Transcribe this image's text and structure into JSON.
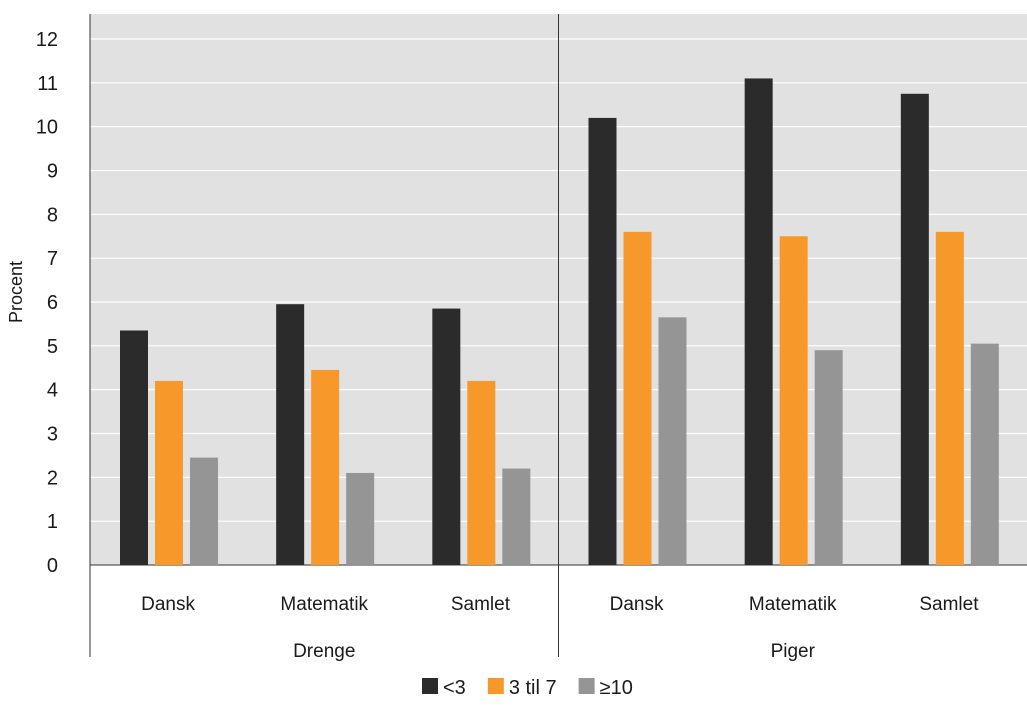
{
  "chart_data": {
    "type": "bar",
    "ylabel": "Procent",
    "ylim": [
      0,
      12
    ],
    "yticks": [
      0,
      1,
      2,
      3,
      4,
      5,
      6,
      7,
      8,
      9,
      10,
      11,
      12
    ],
    "grid": true,
    "legend_position": "bottom",
    "groups": [
      {
        "label": "Drenge",
        "categories": [
          "Dansk",
          "Matematik",
          "Samlet"
        ]
      },
      {
        "label": "Piger",
        "categories": [
          "Dansk",
          "Matematik",
          "Samlet"
        ]
      }
    ],
    "series": [
      {
        "name": "<3",
        "color": "#2b2b2b",
        "values": [
          5.35,
          5.95,
          5.85,
          10.2,
          11.1,
          10.75
        ]
      },
      {
        "name": "3 til 7",
        "color": "#f7982a",
        "values": [
          4.2,
          4.45,
          4.2,
          7.6,
          7.5,
          7.6
        ]
      },
      {
        "name": "≥10",
        "color": "#959595",
        "values": [
          2.45,
          2.1,
          2.2,
          5.65,
          4.9,
          5.05
        ]
      }
    ],
    "background": "#e1e1e1",
    "gridline_color": "#ffffff"
  }
}
